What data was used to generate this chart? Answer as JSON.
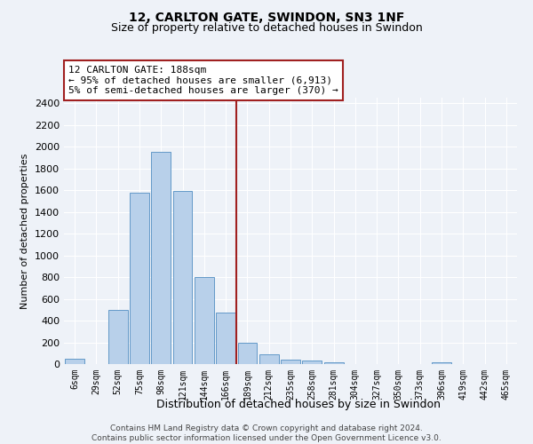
{
  "title": "12, CARLTON GATE, SWINDON, SN3 1NF",
  "subtitle": "Size of property relative to detached houses in Swindon",
  "xlabel": "Distribution of detached houses by size in Swindon",
  "ylabel": "Number of detached properties",
  "categories": [
    "6sqm",
    "29sqm",
    "52sqm",
    "75sqm",
    "98sqm",
    "121sqm",
    "144sqm",
    "166sqm",
    "189sqm",
    "212sqm",
    "235sqm",
    "258sqm",
    "281sqm",
    "304sqm",
    "327sqm",
    "350sqm",
    "373sqm",
    "396sqm",
    "419sqm",
    "442sqm",
    "465sqm"
  ],
  "values": [
    50,
    0,
    500,
    1580,
    1950,
    1590,
    800,
    475,
    195,
    90,
    40,
    30,
    20,
    0,
    0,
    0,
    0,
    20,
    0,
    0,
    0
  ],
  "bar_color": "#b8d0ea",
  "bar_edge_color": "#6399c8",
  "vline_x_index": 8,
  "vline_color": "#a02020",
  "annotation_title": "12 CARLTON GATE: 188sqm",
  "annotation_line1": "← 95% of detached houses are smaller (6,913)",
  "annotation_line2": "5% of semi-detached houses are larger (370) →",
  "annotation_box_edgecolor": "#a02020",
  "ylim": [
    0,
    2450
  ],
  "yticks": [
    0,
    200,
    400,
    600,
    800,
    1000,
    1200,
    1400,
    1600,
    1800,
    2000,
    2200,
    2400
  ],
  "footer_line1": "Contains HM Land Registry data © Crown copyright and database right 2024.",
  "footer_line2": "Contains public sector information licensed under the Open Government Licence v3.0.",
  "bg_color": "#eef2f8",
  "grid_color": "#ffffff",
  "title_fontsize": 10,
  "subtitle_fontsize": 9,
  "ylabel_fontsize": 8,
  "xlabel_fontsize": 9,
  "tick_fontsize": 8,
  "xtick_fontsize": 7,
  "footer_fontsize": 6.5
}
